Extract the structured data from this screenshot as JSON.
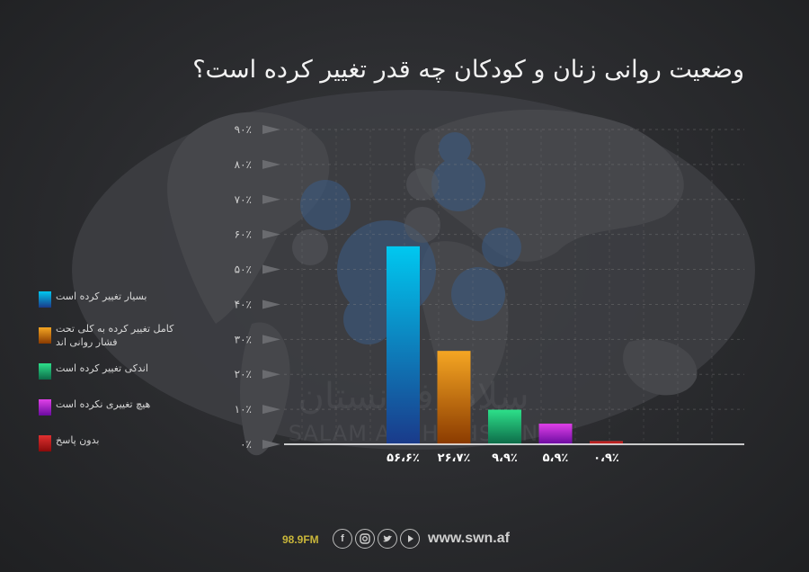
{
  "title": "وضعیت روانی زنان و کودکان چه قدر تغییر کرده است؟",
  "watermark": {
    "fa": "سلام افغانستان",
    "en": "SALAM AFGHANISTAN"
  },
  "colors": {
    "background": "#2a2b2e",
    "text": "#f2f2f2",
    "grid": "#8a8a8a",
    "footer_accent": "#c9b63a"
  },
  "chart_data": {
    "type": "bar",
    "categories": [
      "بسیار تغییر کرده است",
      "کامل تغییر کرده به کلی تحت فشار روانی اند",
      "اندکی تغییر کرده است",
      "هیچ تغییری نکرده است",
      "بدون پاسخ"
    ],
    "values": [
      56.6,
      26.7,
      9.9,
      5.9,
      0.9
    ],
    "value_labels": [
      "۵۶،۶٪",
      "۲۶،۷٪",
      "۹،۹٪",
      "۵،۹٪",
      "۰،۹٪"
    ],
    "ylim": [
      0,
      90
    ],
    "yticks": [
      0,
      10,
      20,
      30,
      40,
      50,
      60,
      70,
      80,
      90
    ],
    "ytick_labels": [
      "۰٪",
      "۱۰٪",
      "۲۰٪",
      "۳۰٪",
      "۴۰٪",
      "۵۰٪",
      "۶۰٪",
      "۷۰٪",
      "۸۰٪",
      "۹۰٪"
    ],
    "grid": true,
    "legend_position": "left",
    "series_colors": [
      [
        "#00c8f0",
        "#1a3a8a"
      ],
      [
        "#f5a623",
        "#8a3a00"
      ],
      [
        "#2de08a",
        "#0d6a48"
      ],
      [
        "#e040e8",
        "#6a0aa0"
      ],
      [
        "#e03030",
        "#8a0a0a"
      ]
    ]
  },
  "legend": [
    {
      "label": "بسیار تغییر کرده است"
    },
    {
      "label": "کامل تغییر کرده به کلی تحت فشار روانی اند"
    },
    {
      "label": "اندکی تغییر کرده است"
    },
    {
      "label": "هیچ تغییری نکرده است"
    },
    {
      "label": "بدون پاسخ"
    }
  ],
  "footer": {
    "frequency": "98.9FM",
    "icons": [
      "facebook-icon",
      "instagram-icon",
      "twitter-icon",
      "youtube-icon"
    ],
    "site": "www.swn.af"
  }
}
